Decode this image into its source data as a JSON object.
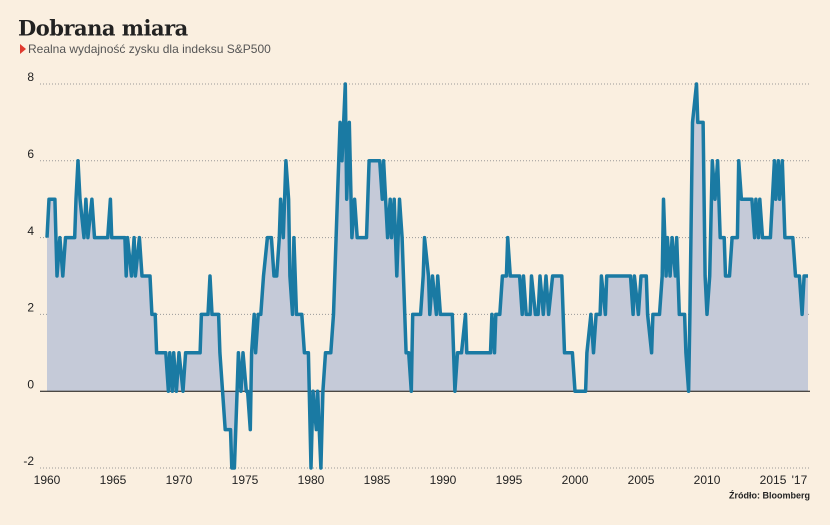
{
  "chart_data": {
    "type": "area-line",
    "title": "Dobrana miara",
    "subtitle": "Realna wydajność zysku dla indeksu S&P500",
    "source": "Źródło: Bloomberg",
    "color": "#1a7aa3",
    "fill_color": "#c5cad8",
    "grid": true,
    "xlim": [
      1959.47,
      2017.8
    ],
    "xticks": [
      1960,
      1965,
      1970,
      1975,
      1980,
      1985,
      1990,
      1995,
      2000,
      2005,
      2010,
      2015,
      {
        "value": 2017,
        "label": "'17"
      }
    ],
    "ylim": [
      -2,
      8
    ],
    "yticks": [
      -2,
      0,
      2,
      4,
      6,
      8
    ],
    "x": [
      1960.0,
      1960.15,
      1960.6,
      1960.76,
      1960.98,
      1961.2,
      1961.4,
      1962.1,
      1962.2,
      1962.35,
      1962.5,
      1962.8,
      1962.95,
      1963.1,
      1963.4,
      1963.6,
      1964.6,
      1964.8,
      1964.9,
      1965.9,
      1966.0,
      1966.1,
      1966.4,
      1966.6,
      1966.7,
      1967.0,
      1967.2,
      1967.8,
      1967.95,
      1968.2,
      1968.3,
      1969.0,
      1969.2,
      1969.3,
      1969.5,
      1969.6,
      1969.8,
      1970.0,
      1970.3,
      1970.5,
      1971.6,
      1971.7,
      1972.2,
      1972.35,
      1972.5,
      1973.0,
      1973.1,
      1973.5,
      1973.9,
      1974.0,
      1974.2,
      1974.4,
      1974.5,
      1974.7,
      1974.85,
      1975.1,
      1975.2,
      1975.4,
      1975.5,
      1975.7,
      1975.8,
      1976.0,
      1976.2,
      1976.4,
      1976.7,
      1977.0,
      1977.2,
      1977.4,
      1977.6,
      1977.7,
      1977.9,
      1978.1,
      1978.3,
      1978.4,
      1978.6,
      1978.7,
      1978.9,
      1979.3,
      1979.5,
      1979.8,
      1980.0,
      1980.15,
      1980.4,
      1980.5,
      1980.75,
      1980.9,
      1981.1,
      1981.5,
      1981.7,
      1981.9,
      1982.0,
      1982.2,
      1982.35,
      1982.6,
      1982.7,
      1982.9,
      1983.1,
      1983.3,
      1983.5,
      1984.2,
      1984.4,
      1985.2,
      1985.4,
      1985.5,
      1985.8,
      1986.0,
      1986.1,
      1986.3,
      1986.5,
      1986.7,
      1986.9,
      1987.2,
      1987.4,
      1987.6,
      1987.7,
      1988.3,
      1988.5,
      1988.6,
      1988.9,
      1989.0,
      1989.2,
      1989.5,
      1989.6,
      1989.8,
      1990.7,
      1990.9,
      1991.1,
      1991.4,
      1991.7,
      1991.8,
      1993.6,
      1993.7,
      1993.9,
      1994.0,
      1994.3,
      1994.5,
      1994.8,
      1994.9,
      1995.1,
      1995.8,
      1996.0,
      1996.1,
      1996.3,
      1996.6,
      1996.7,
      1997.0,
      1997.2,
      1997.35,
      1997.6,
      1997.8,
      1998.0,
      1998.3,
      1999.0,
      1999.2,
      1999.8,
      2000.0,
      2000.8,
      2000.9,
      2001.2,
      2001.4,
      2001.6,
      2001.9,
      2002.0,
      2002.3,
      2002.4,
      2004.2,
      2004.4,
      2004.5,
      2004.8,
      2005.0,
      2005.4,
      2005.5,
      2005.8,
      2005.9,
      2006.4,
      2006.6,
      2006.7,
      2006.9,
      2007.0,
      2007.2,
      2007.35,
      2007.6,
      2007.7,
      2007.9,
      2008.3,
      2008.4,
      2008.6,
      2008.7,
      2008.9,
      2009.2,
      2009.3,
      2009.7,
      2009.85,
      2010.0,
      2010.2,
      2010.4,
      2010.6,
      2010.8,
      2011.0,
      2011.3,
      2011.4,
      2011.7,
      2011.9,
      2012.3,
      2012.4,
      2012.6,
      2013.4,
      2013.6,
      2013.7,
      2013.9,
      2014.0,
      2014.2,
      2014.8,
      2015.1,
      2015.2,
      2015.4,
      2015.5,
      2015.7,
      2015.9,
      2016.5,
      2016.7,
      2017.0,
      2017.2,
      2017.35,
      2017.65
    ],
    "values": [
      4,
      5,
      5,
      3,
      4,
      3,
      4,
      4,
      5,
      6,
      5,
      4,
      5,
      4,
      5,
      4,
      4,
      5,
      4,
      4,
      3,
      4,
      3,
      4,
      3,
      4,
      3,
      3,
      2,
      2,
      1,
      1,
      0,
      1,
      0,
      1,
      0,
      1,
      0,
      1,
      1,
      2,
      2,
      3,
      2,
      2,
      1,
      -1,
      -1,
      -2,
      -2,
      0,
      1,
      0,
      1,
      0,
      0,
      -1,
      1,
      2,
      1,
      2,
      2,
      3,
      4,
      4,
      3,
      3,
      4,
      5,
      4,
      6,
      5,
      3,
      2,
      4,
      2,
      2,
      1,
      1,
      -2,
      0,
      -1,
      0,
      -2,
      0,
      1,
      1,
      2,
      4,
      5,
      7,
      6,
      8,
      5,
      7,
      4,
      5,
      4,
      4,
      6,
      6,
      5,
      6,
      4,
      5,
      4,
      5,
      3,
      5,
      4,
      1,
      1,
      0,
      2,
      2,
      3,
      4,
      3,
      2,
      3,
      2,
      3,
      2,
      2,
      0,
      1,
      1,
      2,
      1,
      1,
      2,
      1,
      2,
      2,
      3,
      3,
      4,
      3,
      3,
      2,
      3,
      2,
      2,
      3,
      2,
      2,
      3,
      2,
      3,
      2,
      3,
      3,
      1,
      1,
      0,
      0,
      1,
      2,
      1,
      2,
      2,
      3,
      2,
      3,
      3,
      2,
      3,
      2,
      3,
      3,
      2,
      1,
      2,
      2,
      3,
      5,
      3,
      4,
      3,
      4,
      3,
      4,
      2,
      2,
      1,
      0,
      2,
      7,
      8,
      7,
      7,
      3,
      2,
      3,
      6,
      5,
      6,
      4,
      4,
      3,
      3,
      4,
      4,
      6,
      5,
      5,
      4,
      5,
      4,
      5,
      4,
      4,
      6,
      5,
      6,
      5,
      6,
      4,
      4,
      3,
      3,
      2,
      3,
      3
    ]
  }
}
